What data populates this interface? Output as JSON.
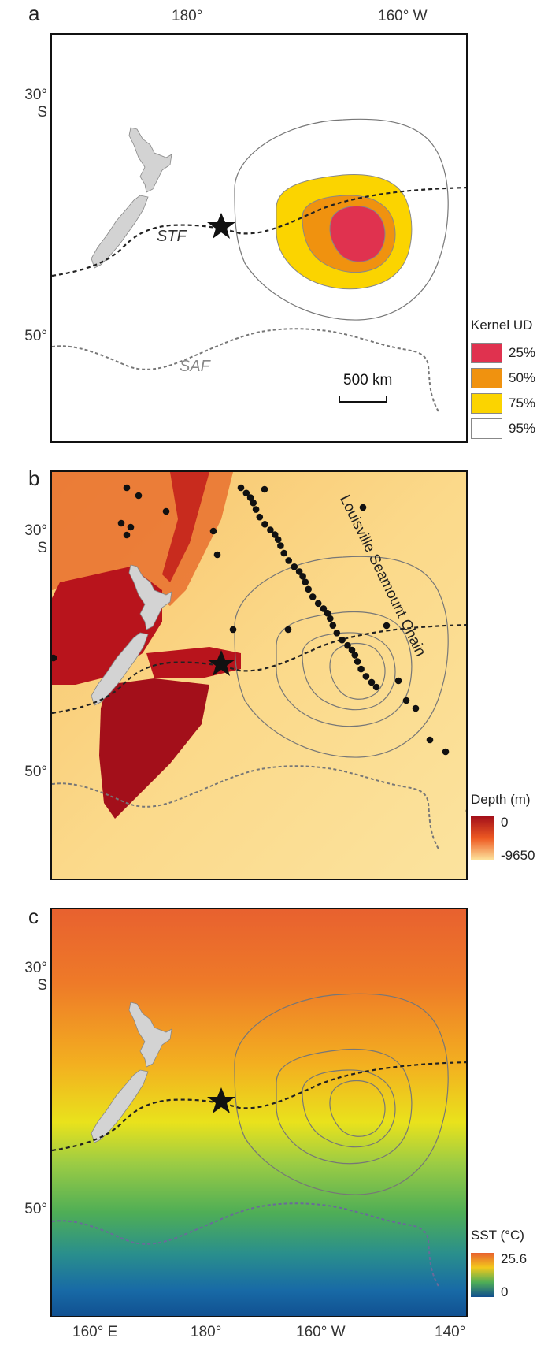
{
  "panel_a": {
    "letter": "a",
    "top_lon_labels": [
      "180°",
      "160° W"
    ],
    "lat_labels": [
      "30°\nS",
      "50°"
    ],
    "front_labels": {
      "stf": "STF",
      "saf": "SAF"
    },
    "scale_bar": "500 km",
    "legend": {
      "title": "Kernel UD",
      "items": [
        {
          "label": "25%",
          "color": "#e0324f"
        },
        {
          "label": "50%",
          "color": "#f0920f"
        },
        {
          "label": "75%",
          "color": "#fbd400"
        },
        {
          "label": "95%",
          "color": "#ffffff"
        }
      ]
    }
  },
  "panel_b": {
    "letter": "b",
    "lat_labels": [
      "30°\nS",
      "50°"
    ],
    "chain_label": "Louisville Seamount Chain",
    "legend": {
      "title": "Depth (m)",
      "max": "0",
      "min": "-9650",
      "colors": [
        "#a30f1a",
        "#ee5a22",
        "#fde7a0"
      ]
    }
  },
  "panel_c": {
    "letter": "c",
    "lat_labels": [
      "30°\nS",
      "50°"
    ],
    "bottom_lon_labels": [
      "160° E",
      "180°",
      "160° W",
      "140°"
    ],
    "legend": {
      "title": "SST (°C)",
      "max": "25.6",
      "min": "0",
      "colors": [
        "#e8612f",
        "#f3c81c",
        "#4fae56",
        "#104e8f"
      ]
    }
  },
  "symbols": {
    "colony": "star-icon",
    "seamount": "circle-icon",
    "land": "grey-landmass"
  },
  "colors": {
    "land": "#d3d3d3",
    "stf_line": "#222222",
    "saf_line": "#777777",
    "contour": "#777777"
  }
}
